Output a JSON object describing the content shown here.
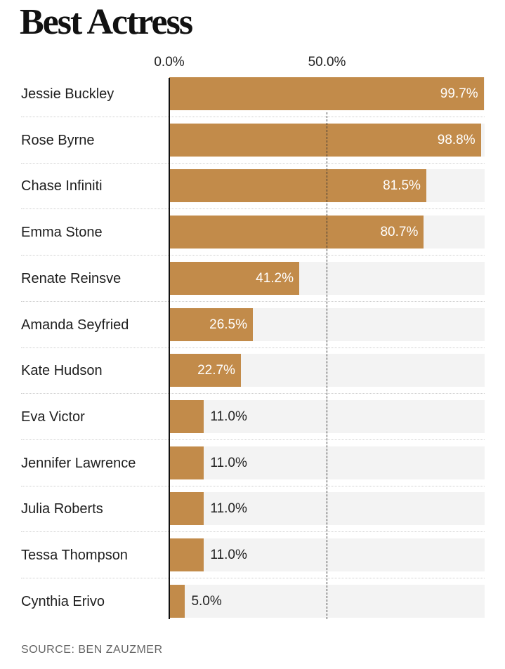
{
  "chart_data": {
    "type": "bar",
    "orientation": "horizontal",
    "title": "Best Actress",
    "xlim": [
      0,
      100
    ],
    "ticks": [
      {
        "value": 0,
        "label": "0.0%"
      },
      {
        "value": 50,
        "label": "50.0%"
      }
    ],
    "categories": [
      "Jessie Buckley",
      "Rose Byrne",
      "Chase Infiniti",
      "Emma Stone",
      "Renate Reinsve",
      "Amanda Seyfried",
      "Kate Hudson",
      "Eva Victor",
      "Jennifer Lawrence",
      "Julia Roberts",
      "Tessa Thompson",
      "Cynthia Erivo"
    ],
    "values": [
      99.7,
      98.8,
      81.5,
      80.7,
      41.2,
      26.5,
      22.7,
      11.0,
      11.0,
      11.0,
      11.0,
      5.0
    ],
    "value_labels": [
      "99.7%",
      "98.8%",
      "81.5%",
      "80.7%",
      "41.2%",
      "26.5%",
      "22.7%",
      "11.0%",
      "11.0%",
      "11.0%",
      "11.0%",
      "5.0%"
    ],
    "source": "SOURCE: BEN ZAUZMER",
    "colors": {
      "bar": "#c28b4a",
      "track": "#f3f3f3"
    }
  }
}
